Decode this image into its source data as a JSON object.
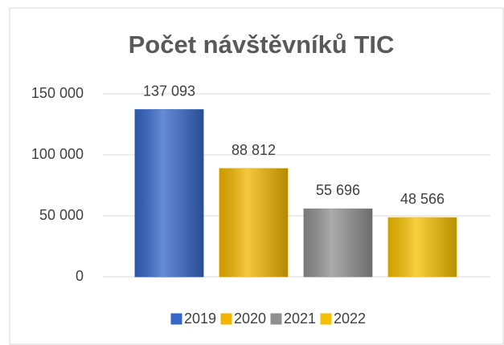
{
  "chart_data": {
    "type": "bar",
    "title": "Počet návštěvníků TIC",
    "series": [
      {
        "name": "2019",
        "color": "#3566c8",
        "values": [
          137093
        ],
        "value_labels": [
          "137 093"
        ]
      },
      {
        "name": "2020",
        "color": "#f2b600",
        "values": [
          88812
        ],
        "value_labels": [
          "88 812"
        ]
      },
      {
        "name": "2021",
        "color": "#909090",
        "values": [
          55696
        ],
        "value_labels": [
          "55 696"
        ]
      },
      {
        "name": "2022",
        "color": "#f5c000",
        "values": [
          48566
        ],
        "value_labels": [
          "48 566"
        ]
      }
    ],
    "ylim": [
      0,
      150000
    ],
    "yticks": [
      0,
      {
        "value": 50000,
        "label": "50 000"
      },
      {
        "value": 100000,
        "label": "100 000"
      },
      {
        "value": 150000,
        "label": "150 000"
      }
    ],
    "grid": true,
    "legend": "bottom"
  }
}
